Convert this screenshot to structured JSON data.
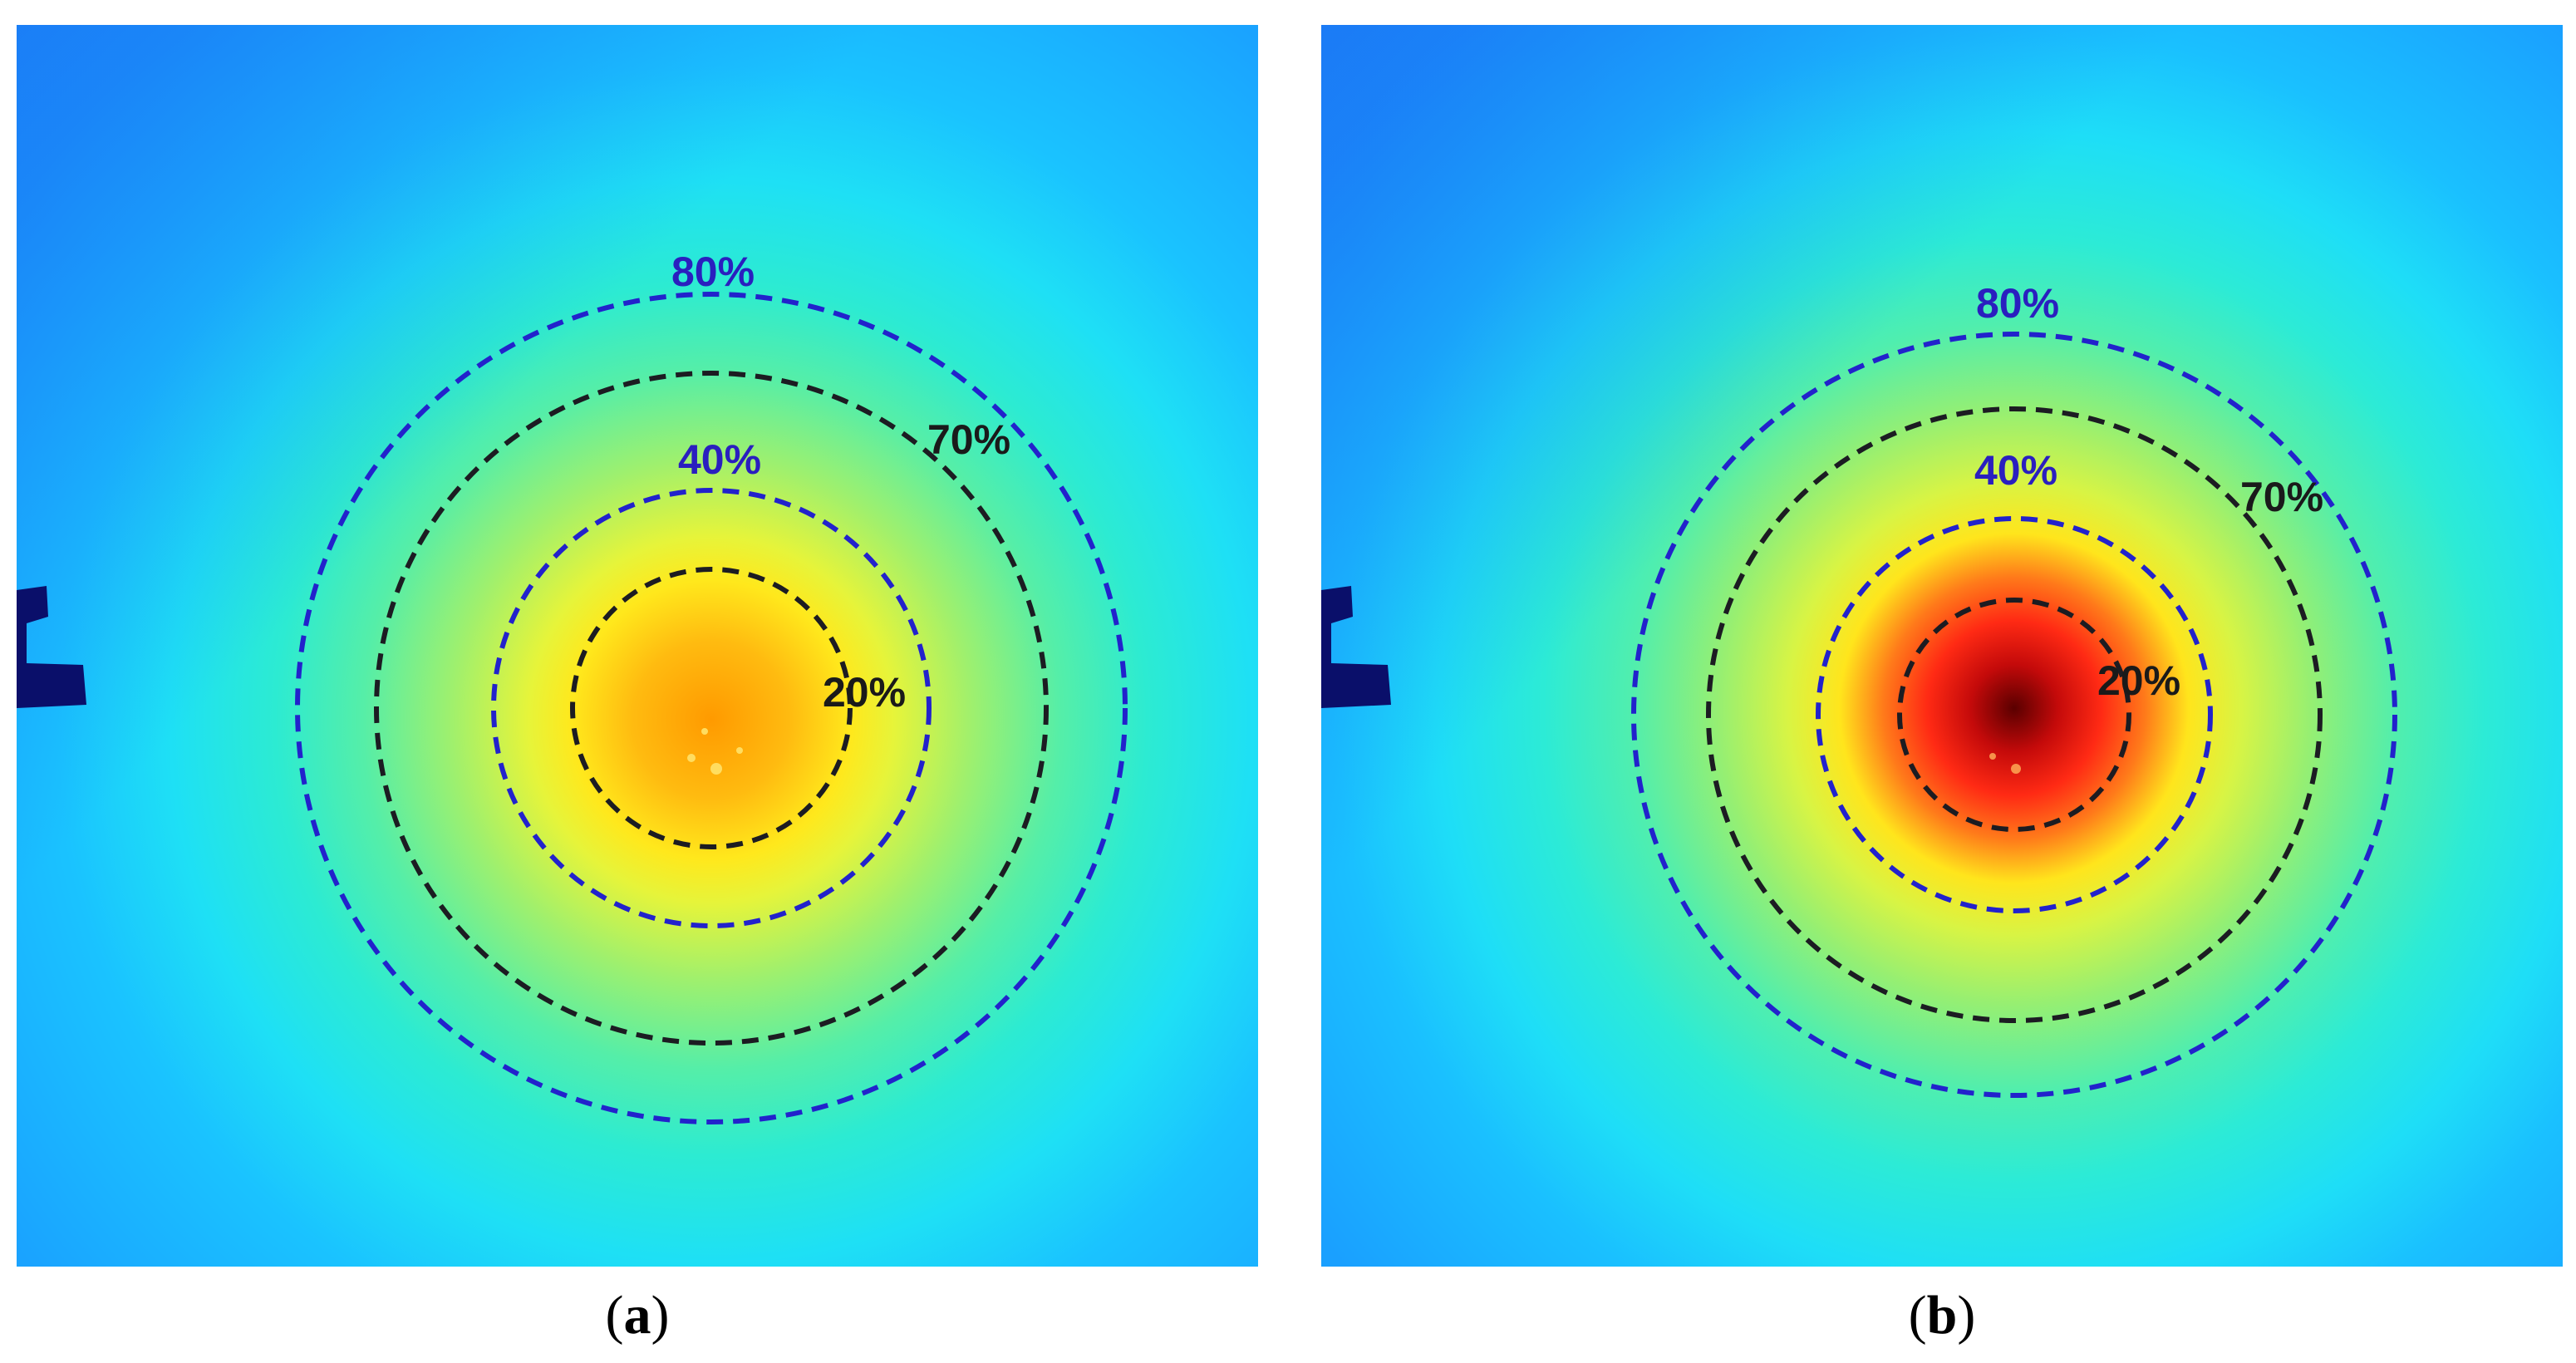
{
  "colors": {
    "outer_ring": "#2222cc",
    "inner_ring": "#1c1c22",
    "blue_label": "#2a1fbf",
    "black_label": "#1a1a1a",
    "background_blue": "#1aa7ff",
    "corner_blue": "#1b6bf2",
    "marker": "#0a0f6a"
  },
  "panels": [
    {
      "id": "a",
      "caption_open": "(",
      "caption_letter": "a",
      "caption_close": ")",
      "peak": "orange",
      "labels": {
        "ring_80": "80%",
        "ring_70": "70%",
        "ring_40": "40%",
        "ring_20": "20%"
      }
    },
    {
      "id": "b",
      "caption_open": "(",
      "caption_letter": "b",
      "caption_close": ")",
      "peak": "dark-red",
      "labels": {
        "ring_80": "80%",
        "ring_70": "70%",
        "ring_40": "40%",
        "ring_20": "20%"
      }
    }
  ]
}
